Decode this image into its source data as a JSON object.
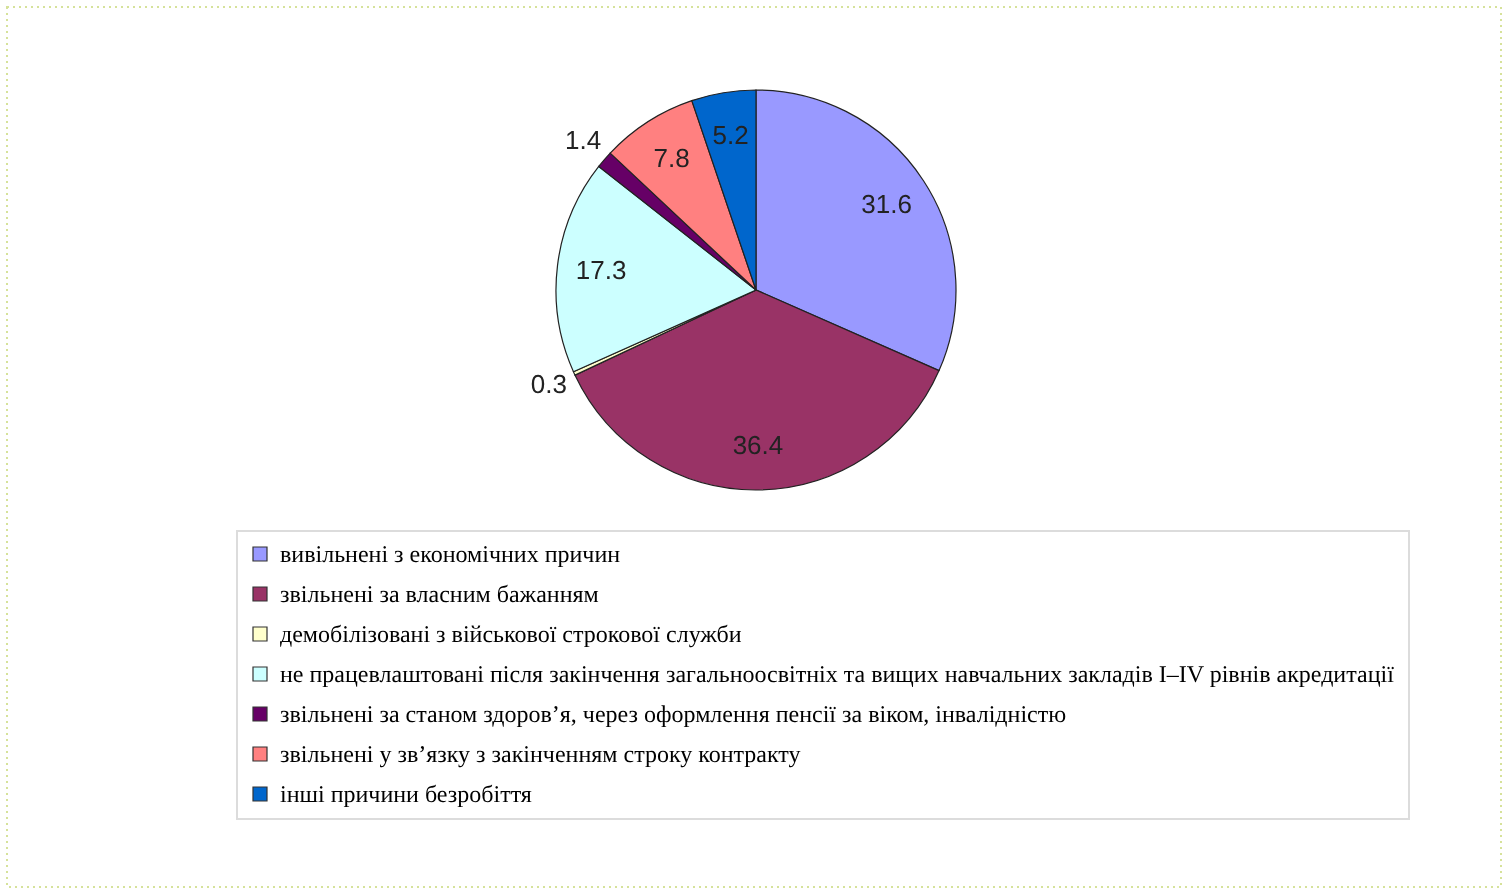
{
  "chart_data": {
    "type": "pie",
    "categories": [
      "вивільнені з економічних причин",
      "звільнені за власним бажанням",
      "демобілізовані з військової строкової служби",
      "не працевлаштовані після закінчення загальноосвітніх та вищих навчальних закладів І–ІV рівнів акредитації",
      "звільнені за станом здоров’я, через оформлення пенсії за віком, інвалідністю",
      "звільнені у зв’язку з закінченням строку контракту",
      "інші причини безробіття"
    ],
    "values": [
      31.6,
      36.4,
      0.3,
      17.3,
      1.4,
      7.8,
      5.2
    ],
    "colors": [
      "#9999ff",
      "#993366",
      "#ffffcc",
      "#ccffff",
      "#660066",
      "#ff8080",
      "#0066cc"
    ],
    "data_labels": true,
    "legend": "bottom"
  }
}
